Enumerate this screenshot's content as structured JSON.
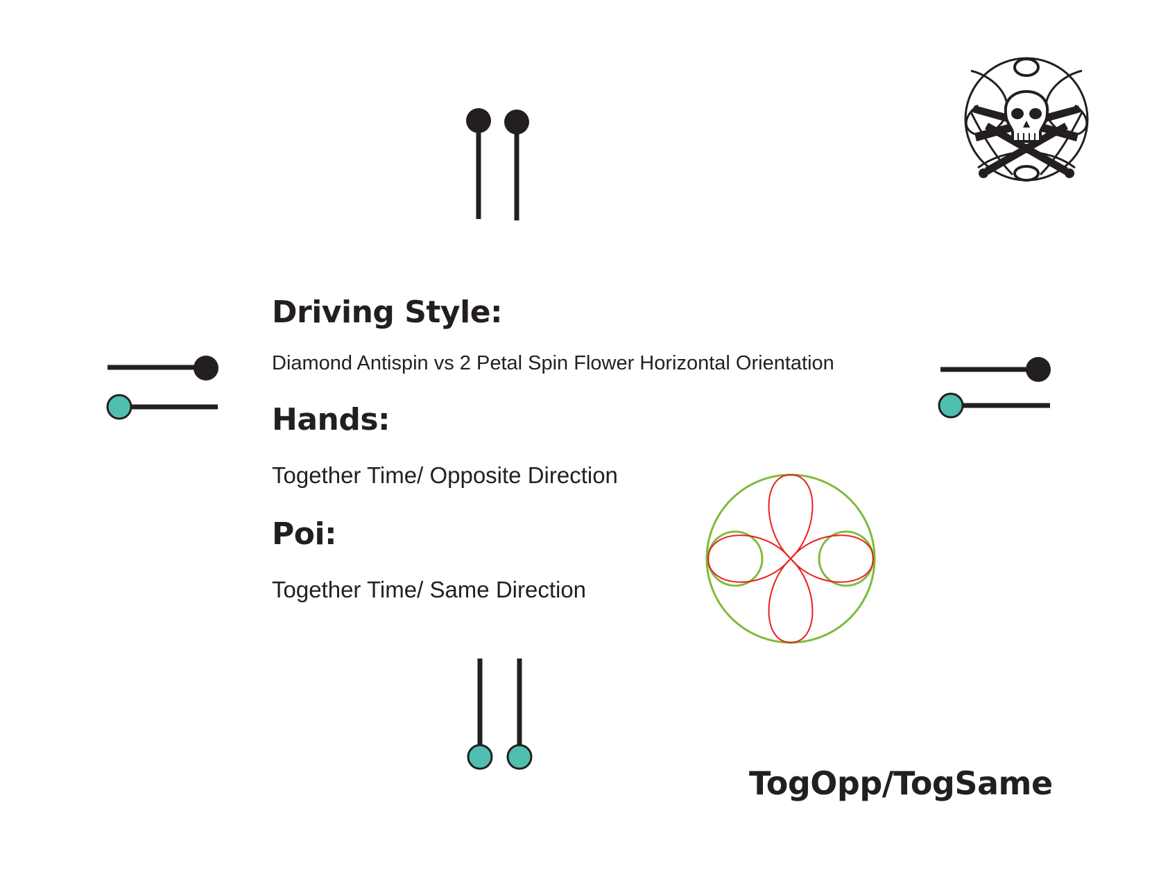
{
  "document": {
    "driving_style": {
      "heading": "Driving Style:",
      "value": "Diamond Antispin vs  2 Petal Spin Flower Horizontal Orientation"
    },
    "hands": {
      "heading": "Hands:",
      "value": "Together Time/ Opposite Direction"
    },
    "poi": {
      "heading": "Poi:",
      "value": "Together Time/ Same Direction"
    },
    "code": "TogOpp/TogSame"
  },
  "colors": {
    "ink": "#231f20",
    "teal_poi": "#4fbfb0",
    "flower_outline": "#e8221e",
    "circle_outline": "#7dbb3b",
    "background": "#ffffff"
  },
  "icons": {
    "logo": "skull-crossbones-logo-icon",
    "pattern": "flower-pattern-icon"
  }
}
